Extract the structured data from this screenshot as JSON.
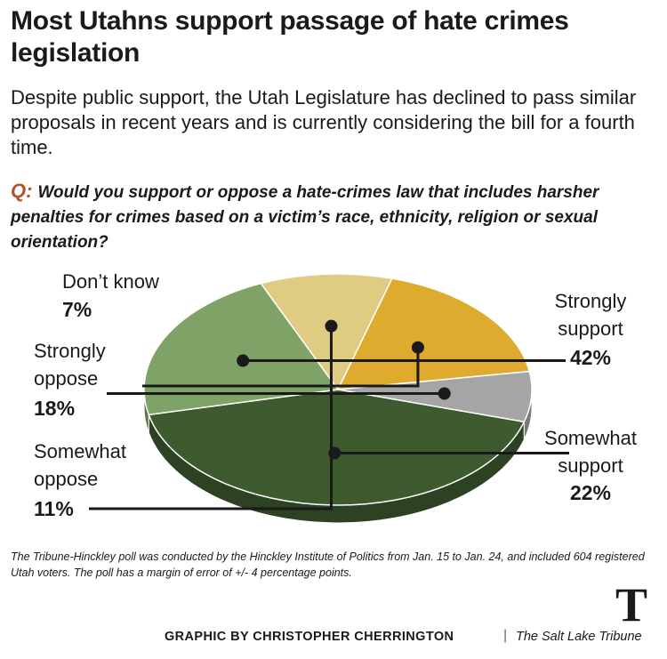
{
  "header": {
    "title": "Most Utahns support passage of hate crimes legislation",
    "subtitle": "Despite public support, the Utah Legislature has declined to pass similar proposals in recent years and is currently considering the bill for a fourth time.",
    "question_prefix": "Q:",
    "question": "Would you support or oppose a hate-crimes law that includes harsher penalties for crimes based on a victim’s race, ethnicity, religion or sexual orientation?"
  },
  "chart_data": {
    "type": "pie",
    "style": "3d-tilted",
    "legend": "none (callout labels)",
    "slices": [
      {
        "label": [
          "Strongly",
          "support"
        ],
        "value": 42,
        "display": "42%",
        "color": "#3e5b2f"
      },
      {
        "label": [
          "Somewhat",
          "support"
        ],
        "value": 22,
        "display": "22%",
        "color": "#7fa266"
      },
      {
        "label": [
          "Somewhat",
          "oppose"
        ],
        "value": 11,
        "display": "11%",
        "color": "#dfcc82"
      },
      {
        "label": [
          "Strongly",
          "oppose"
        ],
        "value": 18,
        "display": "18%",
        "color": "#dfab2e"
      },
      {
        "label": [
          "Don’t know"
        ],
        "value": 7,
        "display": "7%",
        "color": "#a5a5a5"
      }
    ]
  },
  "footer": {
    "note": "The Tribune-Hinckley poll was conducted by the Hinckley Institute of Politics from Jan. 15 to Jan. 24, and included 604 registered Utah voters. The poll has a margin of error of +/- 4 percentage points.",
    "credit": "GRAPHIC BY CHRISTOPHER CHERRINGTON",
    "separator": "|",
    "publication": "The Salt Lake Tribune",
    "logo_letter": "T"
  }
}
